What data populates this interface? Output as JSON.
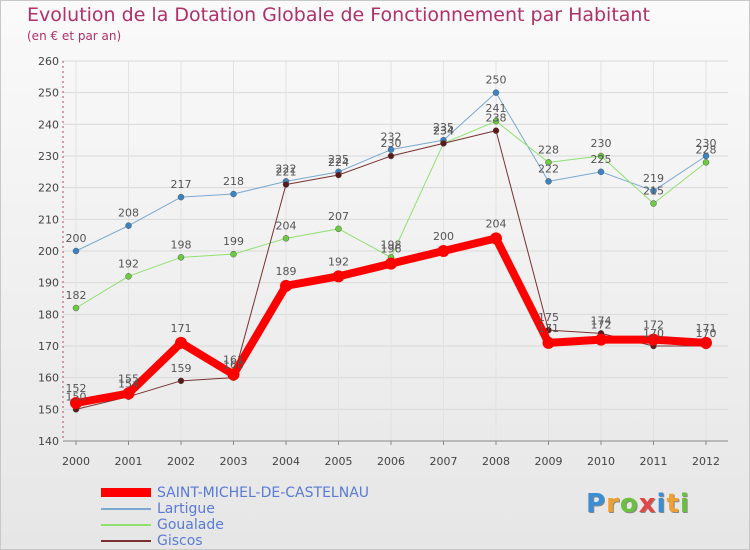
{
  "chart_data": {
    "type": "line",
    "title": "Evolution de la Dotation Globale de Fonctionnement par Habitant",
    "subtitle": "(en € et par an)",
    "xlabel": "",
    "ylabel": "",
    "categories": [
      "2000",
      "2001",
      "2002",
      "2003",
      "2004",
      "2005",
      "2006",
      "2007",
      "2008",
      "2009",
      "2010",
      "2011",
      "2012"
    ],
    "ylim": [
      140,
      260
    ],
    "yticks": [
      140,
      150,
      160,
      170,
      180,
      190,
      200,
      210,
      220,
      230,
      240,
      250,
      260
    ],
    "grid": true,
    "series": [
      {
        "name": "Lartigue",
        "color": "#7aa8d0",
        "marker": "#3a84c4",
        "width": 1,
        "values": [
          200,
          208,
          217,
          218,
          222,
          225,
          232,
          235,
          250,
          222,
          225,
          219,
          230
        ]
      },
      {
        "name": "Goualade",
        "color": "#90e070",
        "marker": "#6acc3e",
        "width": 1,
        "values": [
          182,
          192,
          198,
          199,
          204,
          207,
          198,
          234,
          241,
          228,
          230,
          215,
          228
        ]
      },
      {
        "name": "Giscos",
        "color": "#7a3030",
        "marker": "#5a1a1a",
        "width": 1,
        "values": [
          150,
          154,
          159,
          160,
          221,
          224,
          230,
          234,
          238,
          175,
          174,
          170,
          170
        ]
      },
      {
        "name": "SAINT-MICHEL-DE-CASTELNAU",
        "color": "#ff0000",
        "marker": "#ff0000",
        "width": 8,
        "values": [
          152,
          155,
          171,
          161,
          189,
          192,
          196,
          200,
          204,
          171,
          172,
          172,
          171
        ]
      }
    ],
    "labels": [
      {
        "series": "Lartigue",
        "index": 0,
        "text": "200",
        "dy": -9
      },
      {
        "series": "Lartigue",
        "index": 1,
        "text": "208",
        "dy": -9
      },
      {
        "series": "Lartigue",
        "index": 2,
        "text": "217",
        "dy": -9
      },
      {
        "series": "Lartigue",
        "index": 3,
        "text": "218",
        "dy": -9
      },
      {
        "series": "Lartigue",
        "index": 4,
        "text": "222",
        "dy": -9
      },
      {
        "series": "Lartigue",
        "index": 5,
        "text": "225",
        "dy": -9
      },
      {
        "series": "Lartigue",
        "index": 6,
        "text": "232",
        "dy": -9
      },
      {
        "series": "Lartigue",
        "index": 7,
        "text": "235",
        "dy": -9
      },
      {
        "series": "Lartigue",
        "index": 8,
        "text": "250",
        "dy": -9
      },
      {
        "series": "Lartigue",
        "index": 9,
        "text": "222",
        "dy": -9
      },
      {
        "series": "Lartigue",
        "index": 10,
        "text": "225",
        "dy": -9
      },
      {
        "series": "Lartigue",
        "index": 11,
        "text": "219",
        "dy": -9
      },
      {
        "series": "Lartigue",
        "index": 12,
        "text": "230",
        "dy": -9
      },
      {
        "series": "Goualade",
        "index": 0,
        "text": "182",
        "dy": -9
      },
      {
        "series": "Goualade",
        "index": 1,
        "text": "192",
        "dy": -9
      },
      {
        "series": "Goualade",
        "index": 2,
        "text": "198",
        "dy": -9
      },
      {
        "series": "Goualade",
        "index": 3,
        "text": "199",
        "dy": -9
      },
      {
        "series": "Goualade",
        "index": 4,
        "text": "204",
        "dy": -9
      },
      {
        "series": "Goualade",
        "index": 5,
        "text": "207",
        "dy": -9
      },
      {
        "series": "Goualade",
        "index": 6,
        "text": "198",
        "dy": -9
      },
      {
        "series": "Goualade",
        "index": 7,
        "text": "234",
        "dy": -9
      },
      {
        "series": "Goualade",
        "index": 8,
        "text": "241",
        "dy": -9
      },
      {
        "series": "Goualade",
        "index": 9,
        "text": "228",
        "dy": -9
      },
      {
        "series": "Goualade",
        "index": 10,
        "text": "230",
        "dy": -9
      },
      {
        "series": "Goualade",
        "index": 11,
        "text": "215",
        "dy": -9
      },
      {
        "series": "Goualade",
        "index": 12,
        "text": "228",
        "dy": -9
      },
      {
        "series": "Giscos",
        "index": 0,
        "text": "150",
        "dy": -9
      },
      {
        "series": "Giscos",
        "index": 1,
        "text": "154",
        "dy": -9
      },
      {
        "series": "Giscos",
        "index": 2,
        "text": "159",
        "dy": -9
      },
      {
        "series": "Giscos",
        "index": 3,
        "text": "160",
        "dy": -9
      },
      {
        "series": "Giscos",
        "index": 4,
        "text": "221",
        "dy": -9
      },
      {
        "series": "Giscos",
        "index": 5,
        "text": "224",
        "dy": -9
      },
      {
        "series": "Giscos",
        "index": 6,
        "text": "230",
        "dy": -9
      },
      {
        "series": "Giscos",
        "index": 7,
        "text": "234",
        "dy": -9
      },
      {
        "series": "Giscos",
        "index": 8,
        "text": "238",
        "dy": -9
      },
      {
        "series": "Giscos",
        "index": 9,
        "text": "175",
        "dy": -9
      },
      {
        "series": "Giscos",
        "index": 10,
        "text": "174",
        "dy": -9
      },
      {
        "series": "Giscos",
        "index": 11,
        "text": "170",
        "dy": -9
      },
      {
        "series": "Giscos",
        "index": 12,
        "text": "170",
        "dy": -9
      },
      {
        "series": "SAINT-MICHEL-DE-CASTELNAU",
        "index": 0,
        "text": "152",
        "dy": -11
      },
      {
        "series": "SAINT-MICHEL-DE-CASTELNAU",
        "index": 1,
        "text": "155",
        "dy": -11
      },
      {
        "series": "SAINT-MICHEL-DE-CASTELNAU",
        "index": 2,
        "text": "171",
        "dy": -11
      },
      {
        "series": "SAINT-MICHEL-DE-CASTELNAU",
        "index": 3,
        "text": "161",
        "dy": -11
      },
      {
        "series": "SAINT-MICHEL-DE-CASTELNAU",
        "index": 4,
        "text": "189",
        "dy": -11
      },
      {
        "series": "SAINT-MICHEL-DE-CASTELNAU",
        "index": 5,
        "text": "192",
        "dy": -11
      },
      {
        "series": "SAINT-MICHEL-DE-CASTELNAU",
        "index": 6,
        "text": "196",
        "dy": -11
      },
      {
        "series": "SAINT-MICHEL-DE-CASTELNAU",
        "index": 7,
        "text": "200",
        "dy": -11
      },
      {
        "series": "SAINT-MICHEL-DE-CASTELNAU",
        "index": 8,
        "text": "204",
        "dy": -11
      },
      {
        "series": "SAINT-MICHEL-DE-CASTELNAU",
        "index": 9,
        "text": "171",
        "dy": -11
      },
      {
        "series": "SAINT-MICHEL-DE-CASTELNAU",
        "index": 10,
        "text": "172",
        "dy": -11
      },
      {
        "series": "SAINT-MICHEL-DE-CASTELNAU",
        "index": 11,
        "text": "172",
        "dy": -11
      },
      {
        "series": "SAINT-MICHEL-DE-CASTELNAU",
        "index": 12,
        "text": "171",
        "dy": -11
      }
    ],
    "legend": {
      "placement": "bottom-left",
      "entries": [
        "SAINT-MICHEL-DE-CASTELNAU",
        "Lartigue",
        "Goualade",
        "Giscos"
      ]
    }
  },
  "brand": {
    "letters": [
      "P",
      "r",
      "o",
      "x",
      "i",
      "t",
      "i"
    ],
    "colors": [
      "#3b8ed6",
      "#f0a030",
      "#6cc040",
      "#e04848",
      "#3b8ed6",
      "#f0a030",
      "#6cc040"
    ]
  }
}
